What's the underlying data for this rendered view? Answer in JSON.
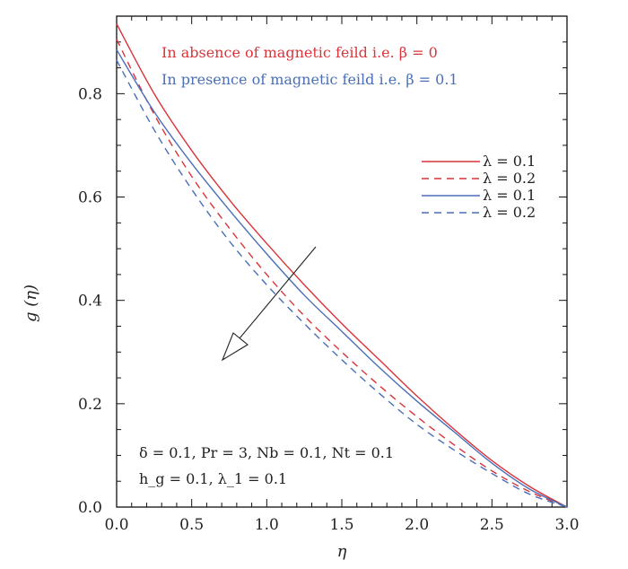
{
  "chart_data": {
    "type": "line",
    "xlabel": "η",
    "ylabel": "g (η)",
    "xlim": [
      0,
      3
    ],
    "ylim": [
      0,
      0.95
    ],
    "xticks": [
      "0.0",
      "0.5",
      "1.0",
      "1.5",
      "2.0",
      "2.5",
      "3.0"
    ],
    "yticks": [
      "0.0",
      "0.2",
      "0.4",
      "0.6",
      "0.8"
    ],
    "x": [
      0,
      0.25,
      0.5,
      0.75,
      1.0,
      1.25,
      1.5,
      1.75,
      2.0,
      2.25,
      2.5,
      2.75,
      3.0
    ],
    "series": [
      {
        "name": "λ = 0.1",
        "color": "#d9343a",
        "dash": "solid",
        "values": [
          0.935,
          0.8,
          0.69,
          0.595,
          0.51,
          0.43,
          0.355,
          0.285,
          0.215,
          0.15,
          0.09,
          0.04,
          0.0
        ]
      },
      {
        "name": "λ = 0.2",
        "color": "#d9343a",
        "dash": "dashed",
        "values": [
          0.905,
          0.76,
          0.64,
          0.54,
          0.45,
          0.37,
          0.3,
          0.235,
          0.175,
          0.12,
          0.07,
          0.03,
          0.0
        ]
      },
      {
        "name": "λ = 0.1",
        "color": "#4a6fb8",
        "dash": "solid",
        "values": [
          0.885,
          0.765,
          0.665,
          0.575,
          0.49,
          0.41,
          0.34,
          0.27,
          0.205,
          0.145,
          0.085,
          0.035,
          0.0
        ]
      },
      {
        "name": "λ = 0.2",
        "color": "#4a6fb8",
        "dash": "dashed",
        "values": [
          0.865,
          0.73,
          0.615,
          0.515,
          0.43,
          0.355,
          0.285,
          0.22,
          0.16,
          0.11,
          0.065,
          0.025,
          0.0
        ]
      }
    ],
    "legend_position": "top-right",
    "annotations": {
      "absence": "In absence of magnetic feild i.e. β = 0",
      "presence": "In presence of magnetic feild i.e. β = 0.1",
      "params_line1": "δ = 0.1,  Pr = 3,  Nb = 0.1,  Nt = 0.1",
      "params_line2": "h_g = 0.1,  λ_1 = 0.1"
    },
    "absence_color": "#d9343a",
    "presence_color": "#4a6fb8",
    "grid": false
  }
}
